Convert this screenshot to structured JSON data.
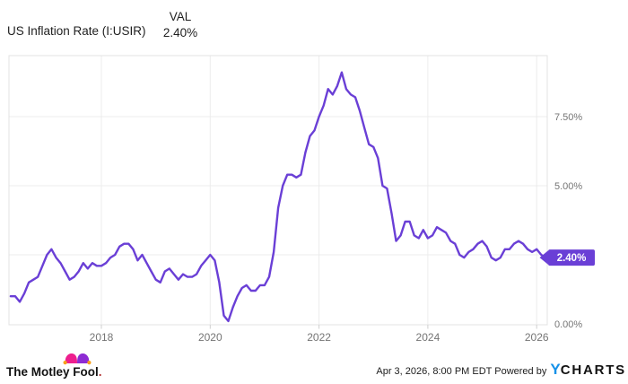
{
  "header": {
    "series_label": "US Inflation Rate (I:USIR)",
    "value_column_label": "VAL",
    "value": "2.40%"
  },
  "chart_data": {
    "type": "line",
    "title": "US Inflation Rate (I:USIR)",
    "legend_position": "none",
    "grid": true,
    "last_value_label": "2.40%",
    "x_axis": {
      "range_year_decimal": [
        2016.33,
        2026.25
      ],
      "ticks": [
        {
          "value": 2018,
          "label": "2018"
        },
        {
          "value": 2020,
          "label": "2020"
        },
        {
          "value": 2022,
          "label": "2022"
        },
        {
          "value": 2024,
          "label": "2024"
        },
        {
          "value": 2026,
          "label": "2026"
        }
      ]
    },
    "y_axis": {
      "unit": "%",
      "range": [
        0,
        9.74
      ],
      "ticks": [
        {
          "value": 0,
          "label": "0.00%"
        },
        {
          "value": 2.5,
          "label": "2.50%"
        },
        {
          "value": 5,
          "label": "5.00%"
        },
        {
          "value": 7.5,
          "label": "7.50%"
        }
      ]
    },
    "series": [
      {
        "name": "US Inflation Rate (I:USIR)",
        "frequency": "monthly",
        "start_year": 2016,
        "start_month": 5,
        "color": "#6A3FD6",
        "values": [
          1.0,
          1.0,
          0.8,
          1.1,
          1.5,
          1.6,
          1.7,
          2.1,
          2.5,
          2.7,
          2.4,
          2.2,
          1.9,
          1.6,
          1.7,
          1.9,
          2.2,
          2.0,
          2.2,
          2.1,
          2.1,
          2.2,
          2.4,
          2.5,
          2.8,
          2.9,
          2.9,
          2.7,
          2.3,
          2.5,
          2.2,
          1.9,
          1.6,
          1.5,
          1.9,
          2.0,
          1.8,
          1.6,
          1.8,
          1.7,
          1.7,
          1.8,
          2.1,
          2.3,
          2.5,
          2.3,
          1.5,
          0.3,
          0.1,
          0.6,
          1.0,
          1.3,
          1.4,
          1.2,
          1.2,
          1.4,
          1.4,
          1.7,
          2.6,
          4.2,
          5.0,
          5.4,
          5.4,
          5.3,
          5.4,
          6.2,
          6.8,
          7.0,
          7.5,
          7.9,
          8.5,
          8.3,
          8.6,
          9.1,
          8.5,
          8.3,
          8.2,
          7.7,
          7.1,
          6.5,
          6.4,
          6.0,
          5.0,
          4.9,
          4.0,
          3.0,
          3.2,
          3.7,
          3.7,
          3.2,
          3.1,
          3.4,
          3.1,
          3.2,
          3.5,
          3.4,
          3.3,
          3.0,
          2.9,
          2.5,
          2.4,
          2.6,
          2.7,
          2.9,
          3.0,
          2.8,
          2.4,
          2.3,
          2.4,
          2.7,
          2.7,
          2.9,
          3.0,
          2.9,
          2.7,
          2.6,
          2.7,
          2.5,
          2.4
        ]
      }
    ]
  },
  "footer": {
    "brand_name": "The Motley Fool",
    "brand_period": ".",
    "attribution": "Apr 3, 2026, 8:00 PM EDT Powered by",
    "watermark_y": "Y",
    "watermark_rest": "CHARTS"
  },
  "colors": {
    "line": "#6A3FD6",
    "badge_bg": "#6A3FD6",
    "badge_text": "#FFFFFF",
    "grid": "#ECECEC",
    "border": "#E3E3E3",
    "tick": "#CFCFCF",
    "axis_text": "#757575",
    "fool_pink": "#ED1F8E",
    "fool_purple": "#8D2BD3",
    "fool_gold": "#F7A01B",
    "ycharts_blue": "#1691E8"
  }
}
